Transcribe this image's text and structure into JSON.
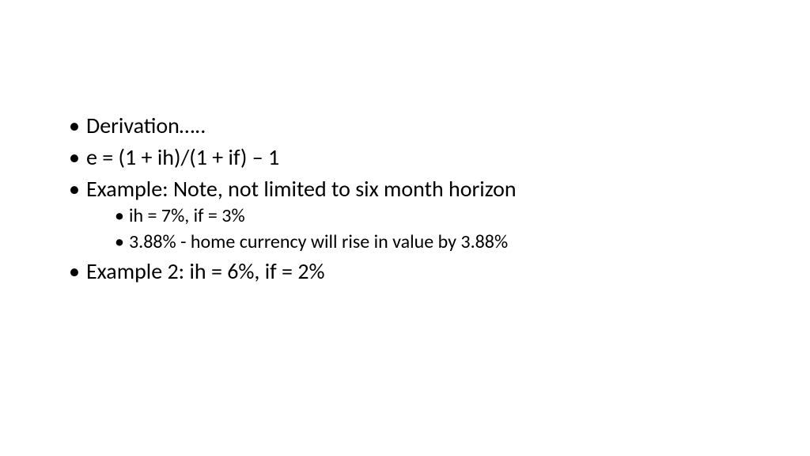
{
  "slide": {
    "background_color": "#ffffff",
    "text_color": "#000000",
    "font_family": "Calibri",
    "bullets": [
      {
        "text": "Derivation…..",
        "level": 1,
        "fontsize": 28
      },
      {
        "text": "e = (1 + ih)/(1 + if) – 1",
        "level": 1,
        "fontsize": 28
      },
      {
        "text": "Example: Note, not limited to six month horizon",
        "level": 1,
        "fontsize": 28
      },
      {
        "text": "ih = 7%, if = 3%",
        "level": 2,
        "fontsize": 24
      },
      {
        "text": "3.88% - home currency will rise in value by 3.88%",
        "level": 2,
        "fontsize": 24
      },
      {
        "text": "Example 2: ih = 6%, if = 2%",
        "level": 1,
        "fontsize": 28
      }
    ]
  }
}
